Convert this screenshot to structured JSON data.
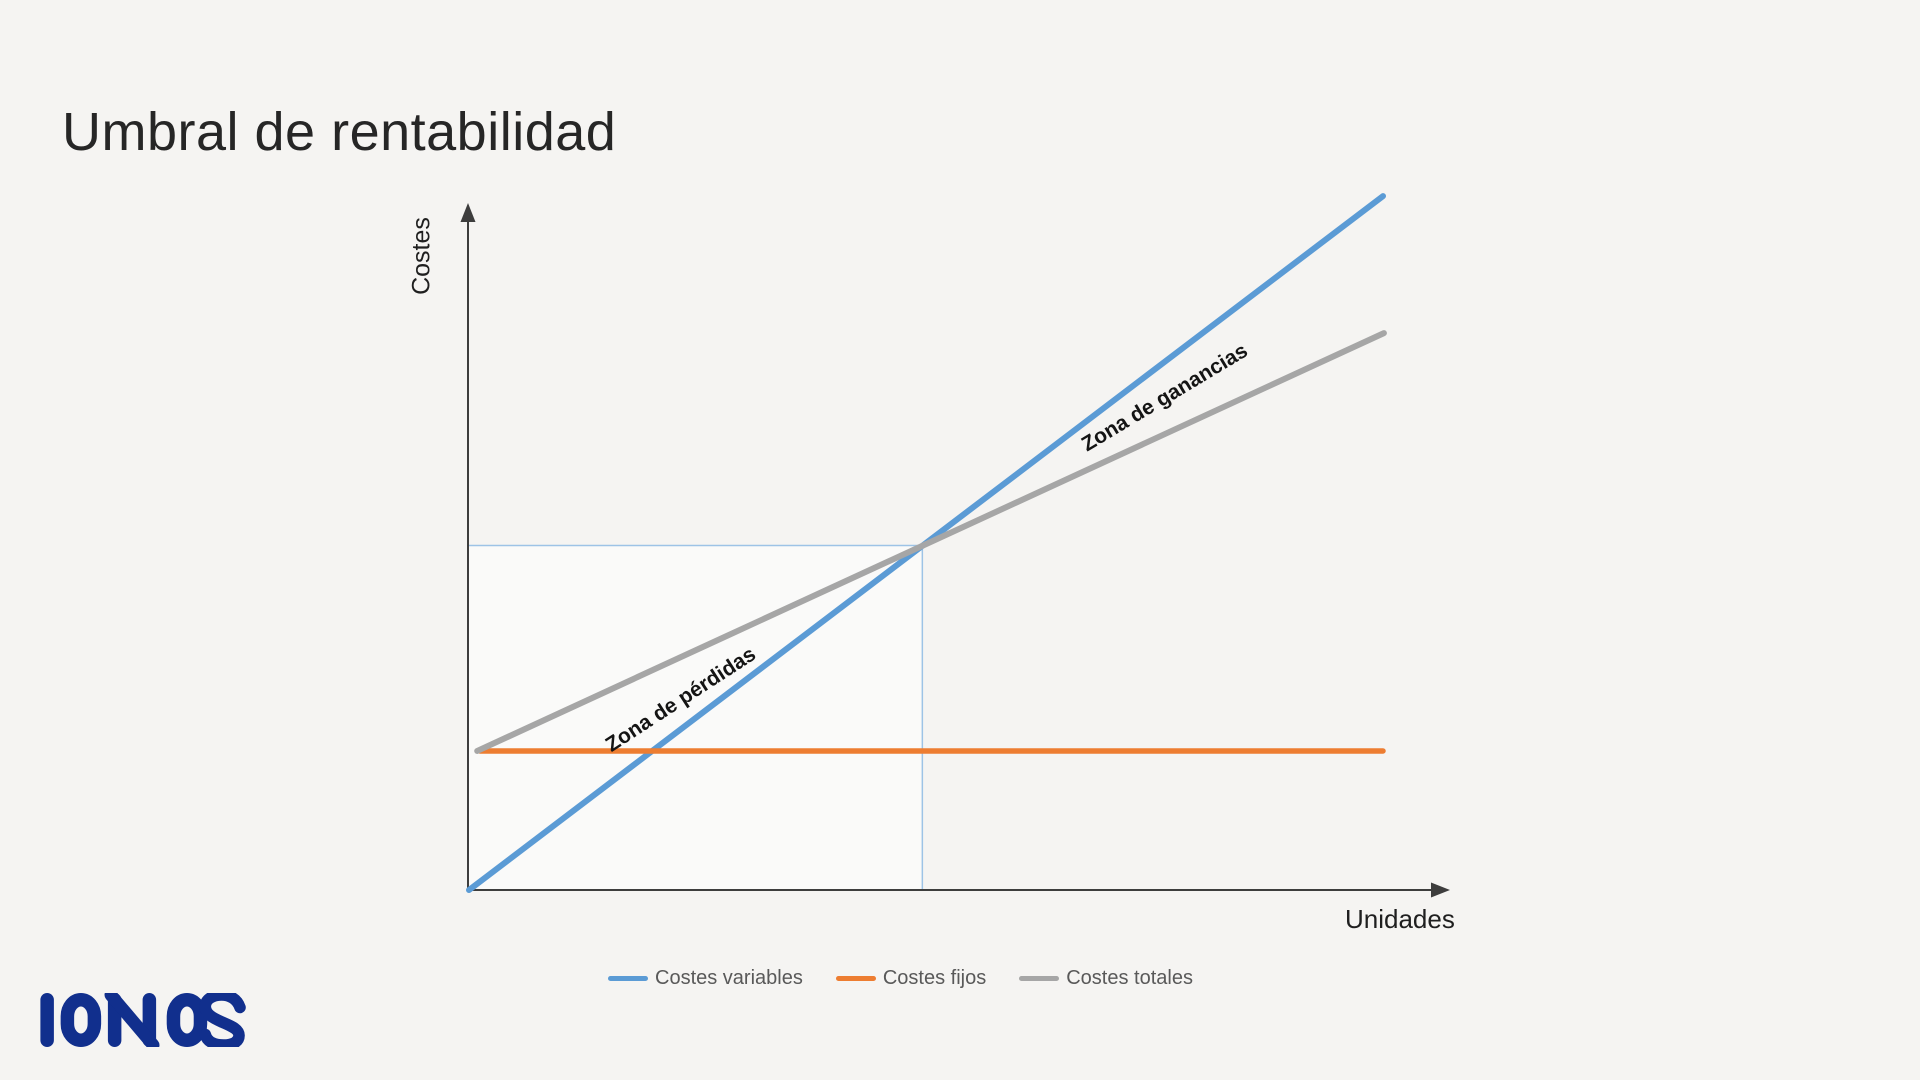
{
  "page": {
    "background_color": "#F5F4F2"
  },
  "brand": {
    "name": "IONOS",
    "logo_color": "#112F8D"
  },
  "chart_data": {
    "type": "line",
    "title": "Umbral de rentabilidad",
    "xlabel": "Unidades",
    "ylabel": "Costes",
    "x_range": [
      0,
      100
    ],
    "y_range": [
      0,
      100
    ],
    "grid": false,
    "legend_position": "bottom-center",
    "axis_color": "#3D3D3D",
    "series": [
      {
        "name": "Costes variables",
        "color": "#5B9BD5",
        "width": 6,
        "points": [
          [
            0,
            0
          ],
          [
            100,
            101.3
          ]
        ]
      },
      {
        "name": "Costes fijos",
        "color": "#ED7D31",
        "width": 5.5,
        "points": [
          [
            1.2,
            20.3
          ],
          [
            100,
            20.3
          ]
        ]
      },
      {
        "name": "Costes totales",
        "color": "#A6A6A6",
        "width": 6,
        "points": [
          [
            0.9,
            20.3
          ],
          [
            100.1,
            81.3
          ]
        ]
      }
    ],
    "break_even": {
      "x": 49.6,
      "y": 50.3,
      "reference_line_color": "#9DC3E6",
      "box_fill": "rgba(255,255,255,0.5)"
    },
    "annotations": [
      {
        "text": "Zona de pérdidas",
        "x": 23.2,
        "y": 27.7,
        "rotation": -33
      },
      {
        "text": "Zona de ganancias",
        "x": 76.1,
        "y": 71.8,
        "rotation": -31
      }
    ]
  }
}
